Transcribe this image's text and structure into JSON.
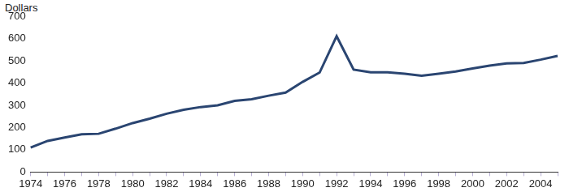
{
  "chart_data": {
    "type": "line",
    "y_label": "Dollars",
    "categories": [
      "1974",
      null,
      "1976",
      null,
      "1978",
      null,
      "1980",
      null,
      "1982",
      null,
      "1984",
      null,
      "1986",
      null,
      "1988",
      null,
      "1990",
      null,
      "1992",
      null,
      "1994",
      null,
      "1996",
      null,
      "1998",
      null,
      "2000",
      null,
      "2002",
      null,
      "2004",
      null
    ],
    "values": [
      110,
      140,
      155,
      170,
      172,
      195,
      220,
      240,
      262,
      280,
      292,
      300,
      320,
      327,
      343,
      357,
      405,
      447,
      610,
      460,
      448,
      448,
      442,
      433,
      442,
      452,
      465,
      478,
      488,
      490,
      505,
      522
    ],
    "color": "#2a4571",
    "ylim": [
      0,
      700
    ],
    "yticks": [
      0,
      100,
      200,
      300,
      400,
      500,
      600,
      700
    ],
    "grid": false
  }
}
